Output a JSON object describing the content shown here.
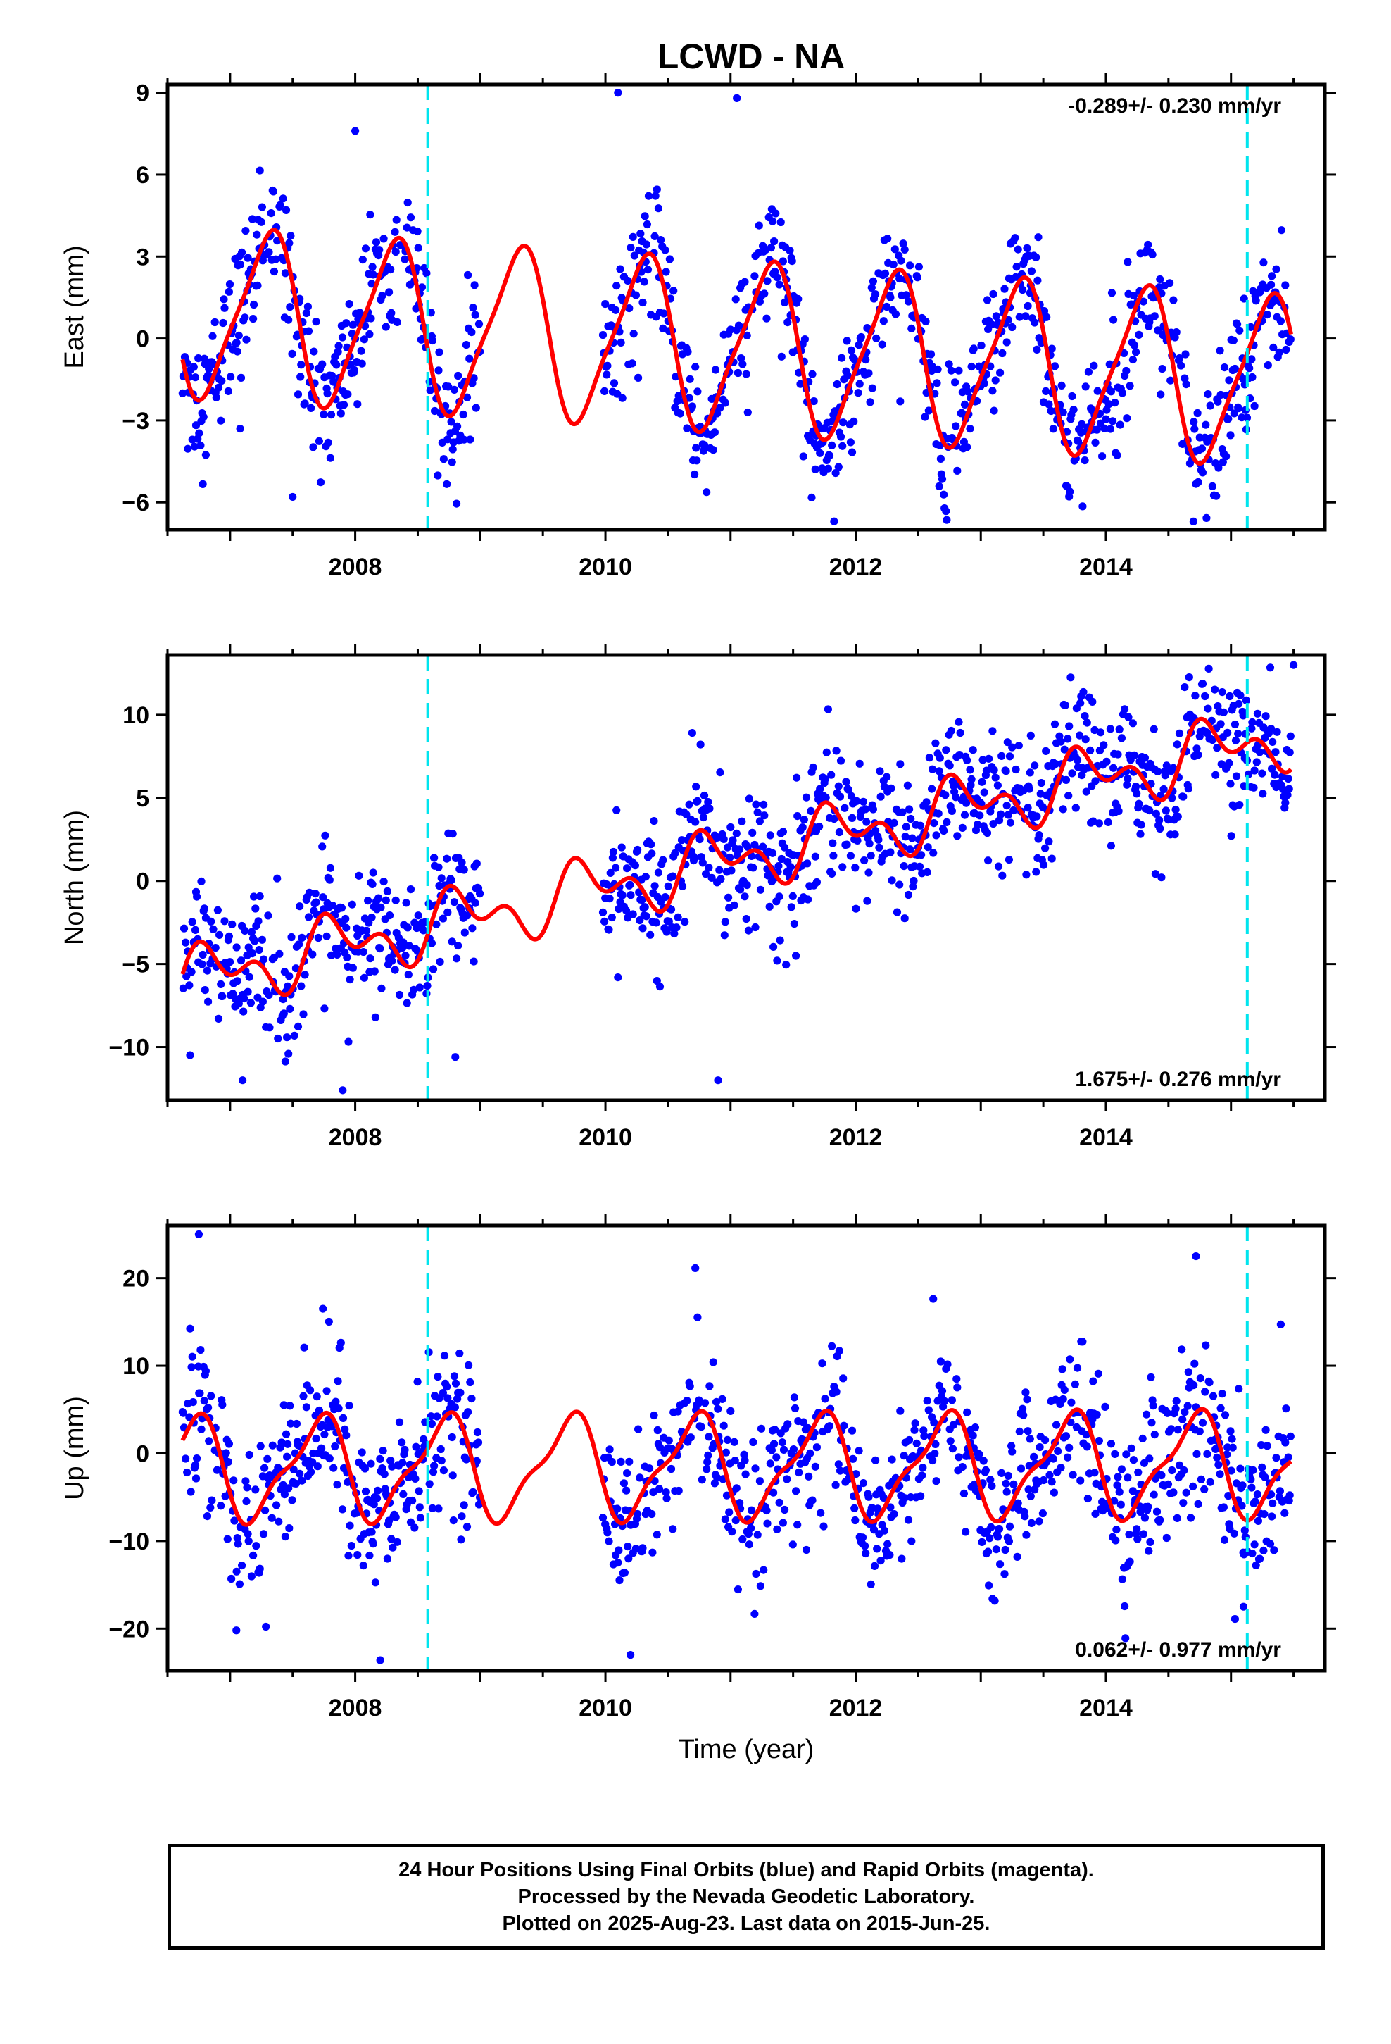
{
  "figure_title": "LCWD - NA",
  "colors": {
    "final_orbits": "#0000ff",
    "model_fit": "#ff0000",
    "event_lines": "#00e5ee",
    "frame": "#000000"
  },
  "footer": {
    "line1": "24 Hour Positions Using Final Orbits (blue) and Rapid Orbits (magenta).",
    "line2": "Processed by the Nevada Geodetic Laboratory.",
    "line3": "Plotted on 2025-Aug-23. Last data on 2015-Jun-25."
  },
  "chart_data": [
    {
      "type": "scatter",
      "component": "east",
      "ylabel": "East (mm)",
      "xlabel": "",
      "xlim": [
        2006.5,
        2015.75
      ],
      "ylim": [
        -7.0,
        9.3
      ],
      "xticks": [
        2008,
        2010,
        2012,
        2014
      ],
      "xtick_labels": [
        "2008",
        "2010",
        "2012",
        "2014"
      ],
      "yticks": [
        9,
        6,
        3,
        0,
        -3,
        -6
      ],
      "ytick_labels": [
        "9",
        "6",
        "3",
        "0",
        "−3",
        "−6"
      ],
      "rate": "-0.289+/- 0.230 mm/yr",
      "rate_position": "top-right",
      "event_lines_x": [
        2008.58,
        2015.13
      ],
      "data_gap": [
        2009.0,
        2009.98
      ],
      "series": {
        "fit": {
          "offset": 0.0,
          "trend": -0.289,
          "amp1": 3.0,
          "phase1": 0.05,
          "amp2": 0.6,
          "phase2": 0.3
        },
        "scatter": {
          "start": 2006.62,
          "end": 2015.48,
          "step": 0.006,
          "noise": 1.2
        },
        "outliers": [
          [
            2007.08,
            -3.3
          ],
          [
            2007.5,
            -5.8
          ],
          [
            2008.0,
            7.6
          ],
          [
            2010.1,
            9.0
          ],
          [
            2011.05,
            8.8
          ],
          [
            2014.7,
            -6.7
          ]
        ]
      }
    },
    {
      "type": "scatter",
      "component": "north",
      "ylabel": "North (mm)",
      "xlabel": "",
      "xlim": [
        2006.5,
        2015.75
      ],
      "ylim": [
        -13.2,
        13.6
      ],
      "xticks": [
        2008,
        2010,
        2012,
        2014
      ],
      "xtick_labels": [
        "2008",
        "2010",
        "2012",
        "2014"
      ],
      "yticks": [
        10,
        5,
        0,
        -5,
        -10
      ],
      "ytick_labels": [
        "10",
        "5",
        "0",
        "−5",
        "−10"
      ],
      "rate": "1.675+/- 0.276 mm/yr",
      "rate_position": "bottom-right",
      "event_lines_x": [
        2008.58,
        2015.13
      ],
      "data_gap": [
        2009.0,
        2009.98
      ],
      "series": {
        "fit": {
          "offset": -0.4,
          "trend": 1.675,
          "amp1": 1.4,
          "phase1": 0.6,
          "amp2": 1.1,
          "phase2": 0.1
        },
        "scatter": {
          "start": 2006.62,
          "end": 2015.48,
          "step": 0.006,
          "noise": 1.9
        },
        "outliers": [
          [
            2007.1,
            -12.0
          ],
          [
            2007.9,
            -12.6
          ],
          [
            2008.8,
            -10.6
          ],
          [
            2010.9,
            -12.0
          ],
          [
            2015.5,
            13.0
          ]
        ]
      }
    },
    {
      "type": "scatter",
      "component": "up",
      "ylabel": "Up (mm)",
      "xlabel": "Time (year)",
      "xlim": [
        2006.5,
        2015.75
      ],
      "ylim": [
        -24.8,
        26.0
      ],
      "xticks": [
        2008,
        2010,
        2012,
        2014
      ],
      "xtick_labels": [
        "2008",
        "2010",
        "2012",
        "2014"
      ],
      "yticks": [
        20,
        10,
        0,
        -10,
        -20
      ],
      "ytick_labels": [
        "20",
        "10",
        "0",
        "−10",
        "−20"
      ],
      "rate": "0.062+/- 0.977 mm/yr",
      "rate_position": "bottom-right",
      "event_lines_x": [
        2008.58,
        2015.13
      ],
      "data_gap": [
        2009.0,
        2009.98
      ],
      "series": {
        "fit": {
          "offset": -1.6,
          "trend": 0.062,
          "amp1": 5.5,
          "phase1": 0.45,
          "amp2": 1.8,
          "phase2": 0.2
        },
        "scatter": {
          "start": 2006.62,
          "end": 2015.48,
          "step": 0.006,
          "noise": 4.4
        },
        "outliers": [
          [
            2006.75,
            25.0
          ],
          [
            2007.05,
            -20.2
          ],
          [
            2008.2,
            -23.6
          ],
          [
            2010.2,
            -23.0
          ],
          [
            2014.72,
            22.5
          ],
          [
            2015.1,
            -17.5
          ]
        ]
      }
    }
  ]
}
